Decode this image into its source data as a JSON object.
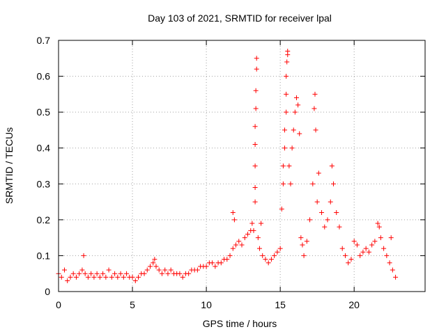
{
  "chart_data": {
    "type": "scatter",
    "title": "Day 103 of 2021, SRMTID for receiver lpal",
    "xlabel": "GPS time / hours",
    "ylabel": "SRMTID / TECUs",
    "xlim": [
      0,
      24.8
    ],
    "ylim": [
      0,
      0.7
    ],
    "xticks": [
      0,
      5,
      10,
      15,
      20
    ],
    "xtick_labels": [
      "0",
      "5",
      "10",
      "15",
      "20"
    ],
    "yticks": [
      0,
      0.1,
      0.2,
      0.3,
      0.4,
      0.5,
      0.6,
      0.7
    ],
    "ytick_labels": [
      "0",
      "0.1",
      "0.2",
      "0.3",
      "0.4",
      "0.5",
      "0.6",
      "0.7"
    ],
    "grid": true,
    "marker": "plus",
    "color": "#ff0000",
    "series": [
      {
        "name": "SRMTID",
        "points": [
          [
            0.0,
            0.05
          ],
          [
            0.2,
            0.04
          ],
          [
            0.4,
            0.06
          ],
          [
            0.6,
            0.03
          ],
          [
            0.8,
            0.04
          ],
          [
            1.0,
            0.05
          ],
          [
            1.2,
            0.04
          ],
          [
            1.4,
            0.05
          ],
          [
            1.6,
            0.06
          ],
          [
            1.7,
            0.1
          ],
          [
            1.8,
            0.05
          ],
          [
            2.0,
            0.04
          ],
          [
            2.2,
            0.05
          ],
          [
            2.4,
            0.04
          ],
          [
            2.6,
            0.05
          ],
          [
            2.8,
            0.04
          ],
          [
            3.0,
            0.05
          ],
          [
            3.2,
            0.04
          ],
          [
            3.4,
            0.06
          ],
          [
            3.6,
            0.04
          ],
          [
            3.8,
            0.05
          ],
          [
            4.0,
            0.04
          ],
          [
            4.2,
            0.05
          ],
          [
            4.4,
            0.04
          ],
          [
            4.6,
            0.05
          ],
          [
            4.8,
            0.04
          ],
          [
            5.0,
            0.04
          ],
          [
            5.2,
            0.03
          ],
          [
            5.4,
            0.04
          ],
          [
            5.6,
            0.05
          ],
          [
            5.8,
            0.05
          ],
          [
            6.0,
            0.06
          ],
          [
            6.2,
            0.07
          ],
          [
            6.4,
            0.08
          ],
          [
            6.5,
            0.09
          ],
          [
            6.6,
            0.07
          ],
          [
            6.8,
            0.06
          ],
          [
            7.0,
            0.05
          ],
          [
            7.2,
            0.06
          ],
          [
            7.4,
            0.05
          ],
          [
            7.6,
            0.06
          ],
          [
            7.8,
            0.05
          ],
          [
            8.0,
            0.05
          ],
          [
            8.2,
            0.05
          ],
          [
            8.4,
            0.04
          ],
          [
            8.6,
            0.05
          ],
          [
            8.8,
            0.05
          ],
          [
            9.0,
            0.06
          ],
          [
            9.2,
            0.06
          ],
          [
            9.4,
            0.06
          ],
          [
            9.6,
            0.07
          ],
          [
            9.8,
            0.07
          ],
          [
            10.0,
            0.07
          ],
          [
            10.2,
            0.08
          ],
          [
            10.4,
            0.08
          ],
          [
            10.6,
            0.07
          ],
          [
            10.8,
            0.08
          ],
          [
            11.0,
            0.08
          ],
          [
            11.2,
            0.09
          ],
          [
            11.4,
            0.09
          ],
          [
            11.6,
            0.1
          ],
          [
            11.8,
            0.12
          ],
          [
            11.8,
            0.22
          ],
          [
            11.9,
            0.2
          ],
          [
            12.0,
            0.13
          ],
          [
            12.2,
            0.14
          ],
          [
            12.4,
            0.13
          ],
          [
            12.6,
            0.15
          ],
          [
            12.8,
            0.16
          ],
          [
            13.0,
            0.17
          ],
          [
            13.1,
            0.19
          ],
          [
            13.2,
            0.17
          ],
          [
            13.3,
            0.25
          ],
          [
            13.3,
            0.29
          ],
          [
            13.3,
            0.35
          ],
          [
            13.3,
            0.41
          ],
          [
            13.3,
            0.46
          ],
          [
            13.35,
            0.51
          ],
          [
            13.35,
            0.56
          ],
          [
            13.4,
            0.62
          ],
          [
            13.4,
            0.65
          ],
          [
            13.5,
            0.15
          ],
          [
            13.6,
            0.12
          ],
          [
            13.7,
            0.19
          ],
          [
            13.8,
            0.1
          ],
          [
            14.0,
            0.09
          ],
          [
            14.2,
            0.08
          ],
          [
            14.4,
            0.09
          ],
          [
            14.6,
            0.1
          ],
          [
            14.8,
            0.11
          ],
          [
            15.0,
            0.12
          ],
          [
            15.1,
            0.23
          ],
          [
            15.2,
            0.3
          ],
          [
            15.2,
            0.35
          ],
          [
            15.3,
            0.4
          ],
          [
            15.3,
            0.45
          ],
          [
            15.4,
            0.5
          ],
          [
            15.4,
            0.55
          ],
          [
            15.4,
            0.6
          ],
          [
            15.45,
            0.64
          ],
          [
            15.5,
            0.67
          ],
          [
            15.5,
            0.66
          ],
          [
            15.6,
            0.35
          ],
          [
            15.7,
            0.3
          ],
          [
            15.8,
            0.4
          ],
          [
            15.9,
            0.45
          ],
          [
            16.0,
            0.5
          ],
          [
            16.1,
            0.54
          ],
          [
            16.2,
            0.52
          ],
          [
            16.3,
            0.44
          ],
          [
            16.4,
            0.15
          ],
          [
            16.5,
            0.13
          ],
          [
            16.6,
            0.1
          ],
          [
            16.8,
            0.14
          ],
          [
            17.0,
            0.2
          ],
          [
            17.2,
            0.3
          ],
          [
            17.3,
            0.51
          ],
          [
            17.35,
            0.55
          ],
          [
            17.4,
            0.45
          ],
          [
            17.5,
            0.25
          ],
          [
            17.6,
            0.33
          ],
          [
            17.8,
            0.22
          ],
          [
            18.0,
            0.18
          ],
          [
            18.2,
            0.2
          ],
          [
            18.4,
            0.25
          ],
          [
            18.5,
            0.35
          ],
          [
            18.6,
            0.3
          ],
          [
            18.8,
            0.22
          ],
          [
            19.0,
            0.18
          ],
          [
            19.2,
            0.12
          ],
          [
            19.4,
            0.1
          ],
          [
            19.6,
            0.08
          ],
          [
            19.8,
            0.09
          ],
          [
            20.0,
            0.14
          ],
          [
            20.2,
            0.13
          ],
          [
            20.4,
            0.1
          ],
          [
            20.6,
            0.11
          ],
          [
            20.8,
            0.12
          ],
          [
            21.0,
            0.11
          ],
          [
            21.2,
            0.13
          ],
          [
            21.4,
            0.14
          ],
          [
            21.6,
            0.19
          ],
          [
            21.7,
            0.18
          ],
          [
            21.8,
            0.15
          ],
          [
            22.0,
            0.12
          ],
          [
            22.2,
            0.1
          ],
          [
            22.4,
            0.08
          ],
          [
            22.5,
            0.15
          ],
          [
            22.6,
            0.06
          ],
          [
            22.8,
            0.04
          ]
        ]
      }
    ]
  }
}
